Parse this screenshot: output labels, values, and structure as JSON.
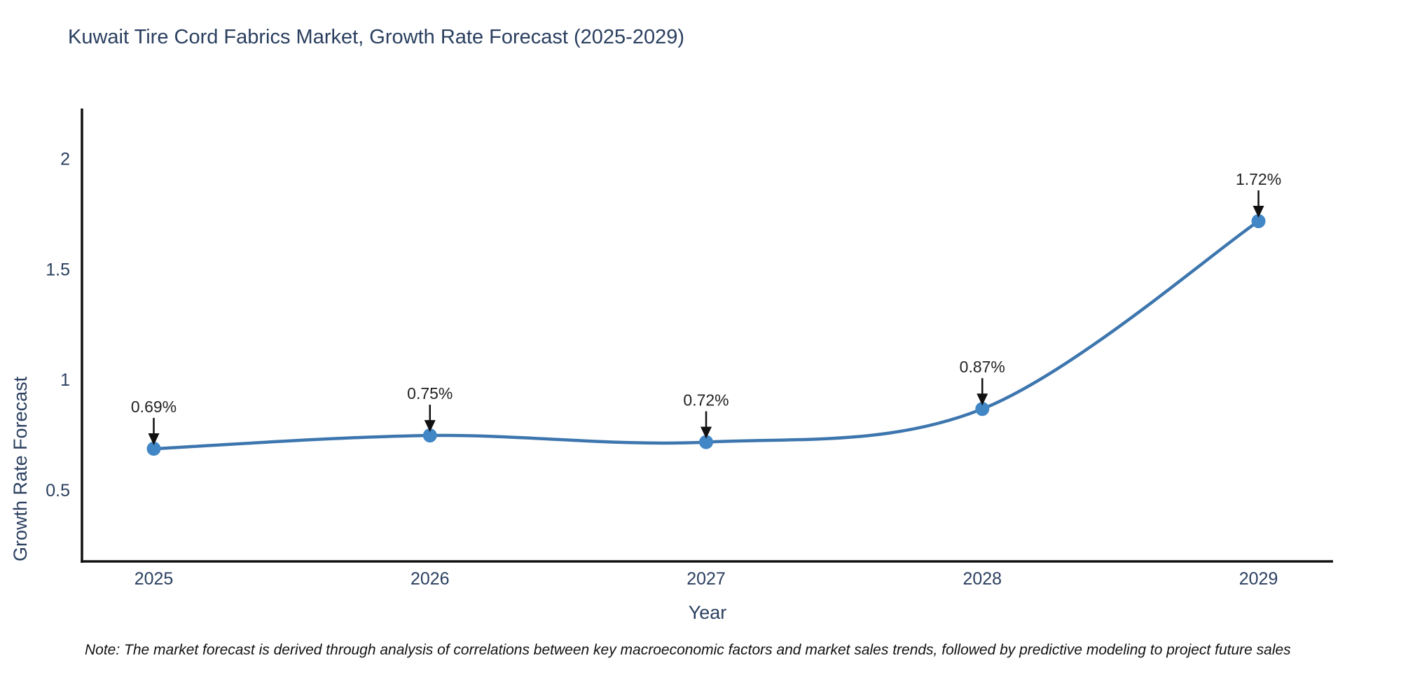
{
  "chart_data": {
    "type": "line",
    "title": "Kuwait Tire Cord Fabrics Market, Growth Rate Forecast (2025-2029)",
    "xlabel": "Year",
    "ylabel": "Growth Rate Forecast",
    "x": [
      2025,
      2026,
      2027,
      2028,
      2029
    ],
    "series": [
      {
        "name": "Growth Rate Forecast",
        "values": [
          0.69,
          0.75,
          0.72,
          0.87,
          1.72
        ]
      }
    ],
    "point_labels": [
      "0.69%",
      "0.75%",
      "0.72%",
      "0.87%",
      "1.72%"
    ],
    "line_shape": "spline",
    "markers": true,
    "grid": false,
    "legend": "none",
    "xticks": [
      "2025",
      "2026",
      "2027",
      "2028",
      "2029"
    ],
    "xtick_values": [
      2025,
      2026,
      2027,
      2028,
      2029
    ],
    "yticks": [
      0.5,
      1,
      1.5,
      2
    ],
    "ytick_labels": [
      "0.5",
      "1",
      "1.5",
      "2"
    ],
    "xlim": [
      2024.74,
      2029.27
    ],
    "ylim": [
      0.18,
      2.23
    ],
    "line_color": "#3d76ae",
    "marker_color": "#4186c5",
    "axis_color": "#111111",
    "annotation_arrow_color": "#111111"
  },
  "footnote": {
    "text": "Note: The market forecast is derived through analysis of correlations between key macroeconomic factors and market sales trends, followed by predictive modeling to project future sales"
  }
}
